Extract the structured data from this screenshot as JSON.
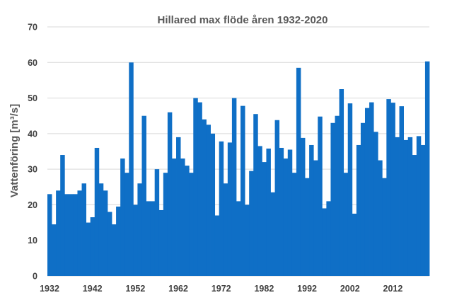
{
  "chart_data": {
    "type": "bar",
    "title": "Hillared max flöde åren 1932-2020",
    "ylabel": "Vattenföring [m³/s]",
    "xlabel": "",
    "ylim": [
      0,
      70
    ],
    "yticks": [
      0,
      10,
      20,
      30,
      40,
      50,
      60,
      70
    ],
    "xtick_labels": [
      "1932",
      "1942",
      "1952",
      "1962",
      "1972",
      "1982",
      "1992",
      "2002",
      "2012"
    ],
    "bar_color": "#0f6fc6",
    "grid": true,
    "series": [
      {
        "name": "Max flöde",
        "x": [
          1932,
          1933,
          1934,
          1935,
          1936,
          1937,
          1938,
          1939,
          1940,
          1941,
          1942,
          1943,
          1944,
          1945,
          1946,
          1947,
          1948,
          1949,
          1950,
          1951,
          1952,
          1953,
          1954,
          1955,
          1956,
          1957,
          1958,
          1959,
          1960,
          1961,
          1962,
          1963,
          1964,
          1965,
          1966,
          1967,
          1968,
          1969,
          1970,
          1971,
          1972,
          1973,
          1974,
          1975,
          1976,
          1977,
          1978,
          1979,
          1980,
          1981,
          1982,
          1983,
          1984,
          1985,
          1986,
          1987,
          1988,
          1989,
          1990,
          1991,
          1992,
          1993,
          1994,
          1995,
          1996,
          1997,
          1998,
          1999,
          2000,
          2001,
          2002,
          2003,
          2004,
          2005,
          2006,
          2007,
          2008,
          2009,
          2010,
          2011,
          2012,
          2013,
          2014,
          2015,
          2016,
          2017,
          2018,
          2019,
          2020
        ],
        "values": [
          23,
          14.5,
          24,
          34,
          23,
          23,
          23,
          24,
          26,
          15,
          16.5,
          36,
          26,
          24,
          18,
          14.5,
          19.5,
          33,
          29,
          60,
          20,
          26,
          45,
          21,
          21,
          30,
          18.5,
          29,
          46,
          33,
          39,
          33,
          31,
          29,
          50,
          48.8,
          44,
          42.5,
          40,
          17,
          37.8,
          26,
          37.5,
          50,
          21,
          47.8,
          20,
          29.5,
          45.5,
          36.5,
          32,
          35.8,
          23.5,
          43.8,
          36,
          33,
          35.5,
          29,
          58.5,
          38.8,
          27.5,
          36.8,
          32.5,
          44.8,
          19,
          21,
          43,
          45,
          52.5,
          29,
          48.5,
          17.5,
          36.8,
          43,
          47.2,
          48.8,
          40.5,
          32.5,
          27.5,
          49.7,
          48.7,
          39,
          47.7,
          38.2,
          39,
          34,
          39.3,
          36.8,
          60.3
        ]
      }
    ]
  }
}
